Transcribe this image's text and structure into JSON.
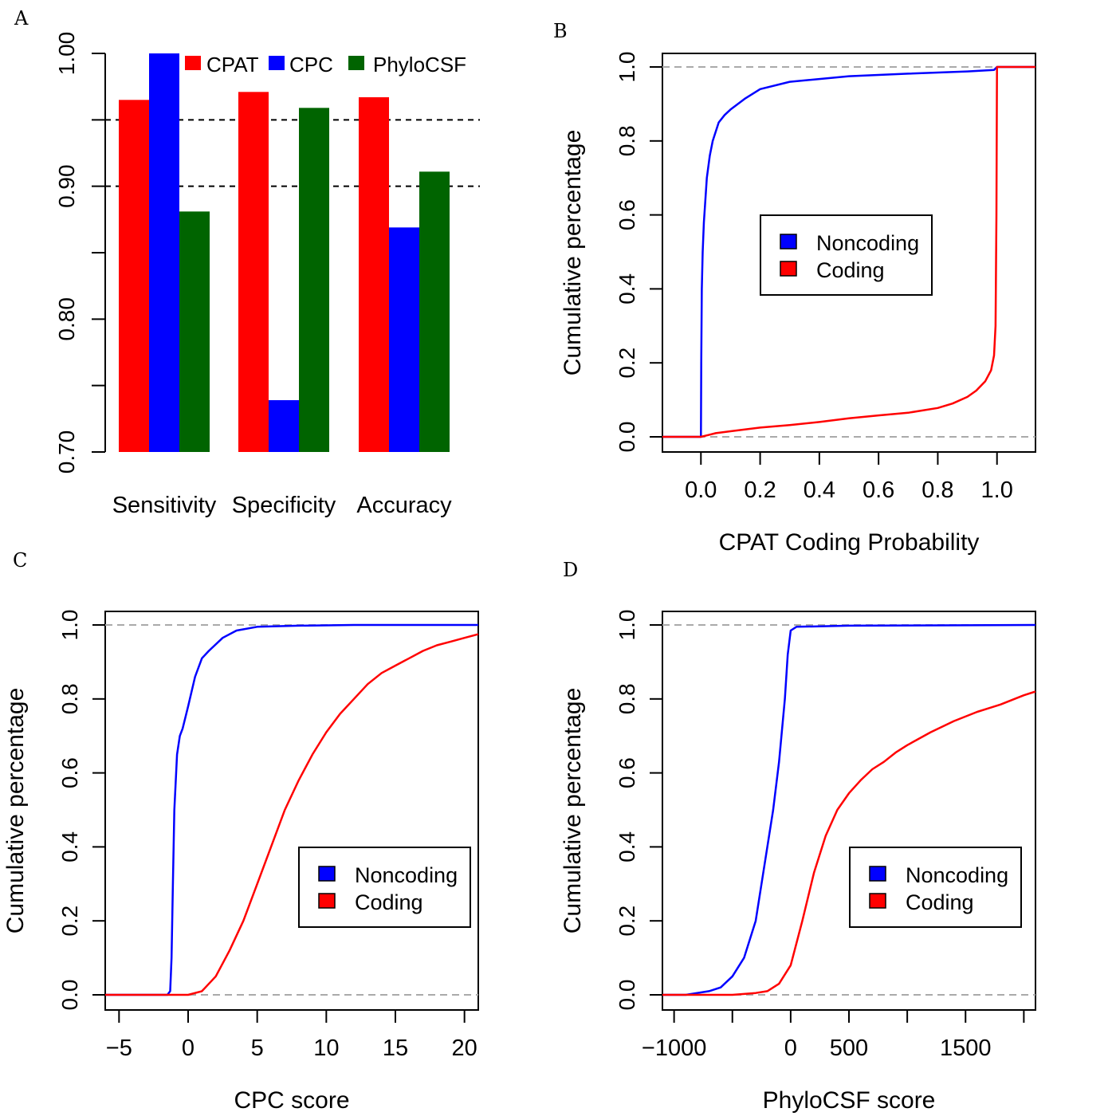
{
  "figure": {
    "panels": [
      "A",
      "B",
      "C",
      "D"
    ]
  },
  "chart_data": [
    {
      "panel": "A",
      "type": "bar",
      "categories": [
        "Sensitivity",
        "Specificity",
        "Accuracy"
      ],
      "series": [
        {
          "name": "CPAT",
          "color": "#ff0000",
          "values": [
            0.965,
            0.971,
            0.967
          ]
        },
        {
          "name": "CPC",
          "color": "#0000ff",
          "values": [
            1.0,
            0.739,
            0.869
          ]
        },
        {
          "name": "PhyloCSF",
          "color": "#006400",
          "values": [
            0.881,
            0.959,
            0.911
          ]
        }
      ],
      "ylim": [
        0.7,
        1.0
      ],
      "yticks": [
        "0.70",
        "0.80",
        "0.90",
        "1.00"
      ],
      "reference_lines": [
        0.95,
        0.9
      ],
      "legend": "top"
    },
    {
      "panel": "B",
      "type": "line",
      "xlabel": "CPAT Coding Probability",
      "ylabel": "Cumulative percentage",
      "xlim": [
        -0.13,
        1.13
      ],
      "ylim": [
        0,
        1
      ],
      "xticks": [
        "0.0",
        "0.2",
        "0.4",
        "0.6",
        "0.8",
        "1.0"
      ],
      "yticks": [
        "0.0",
        "0.2",
        "0.4",
        "0.6",
        "0.8",
        "1.0"
      ],
      "legend": "center",
      "series": [
        {
          "name": "Noncoding",
          "color": "#0000ff",
          "x": [
            -0.13,
            0.0,
            0.001,
            0.003,
            0.006,
            0.01,
            0.02,
            0.03,
            0.04,
            0.06,
            0.08,
            0.1,
            0.15,
            0.2,
            0.3,
            0.5,
            0.7,
            0.9,
            0.99,
            1.0,
            1.13
          ],
          "y": [
            0,
            0,
            0.2,
            0.4,
            0.5,
            0.58,
            0.7,
            0.76,
            0.8,
            0.85,
            0.87,
            0.885,
            0.915,
            0.94,
            0.96,
            0.975,
            0.982,
            0.988,
            0.992,
            1.0,
            1.0
          ]
        },
        {
          "name": "Coding",
          "color": "#ff0000",
          "x": [
            -0.13,
            0.0,
            0.05,
            0.1,
            0.2,
            0.3,
            0.4,
            0.5,
            0.6,
            0.7,
            0.8,
            0.85,
            0.9,
            0.93,
            0.96,
            0.98,
            0.99,
            0.995,
            0.998,
            1.0,
            1.13
          ],
          "y": [
            0,
            0,
            0.01,
            0.015,
            0.025,
            0.032,
            0.04,
            0.05,
            0.058,
            0.065,
            0.078,
            0.09,
            0.108,
            0.125,
            0.15,
            0.18,
            0.22,
            0.3,
            0.6,
            1.0,
            1.0
          ]
        }
      ]
    },
    {
      "panel": "C",
      "type": "line",
      "xlabel": "CPC score",
      "ylabel": "Cumulative percentage",
      "xlim": [
        -6,
        21
      ],
      "ylim": [
        0,
        1
      ],
      "xticks": [
        "−5",
        "0",
        "5",
        "10",
        "15",
        "20"
      ],
      "yticks": [
        "0.0",
        "0.2",
        "0.4",
        "0.6",
        "0.8",
        "1.0"
      ],
      "legend": "right",
      "series": [
        {
          "name": "Noncoding",
          "color": "#0000ff",
          "x": [
            -6,
            -1.5,
            -1.3,
            -1.2,
            -1.1,
            -1.0,
            -0.8,
            -0.6,
            -0.4,
            0.0,
            0.5,
            1.0,
            1.5,
            2.5,
            3.5,
            5,
            8,
            12,
            21
          ],
          "y": [
            0,
            0,
            0.01,
            0.1,
            0.3,
            0.5,
            0.65,
            0.7,
            0.72,
            0.78,
            0.86,
            0.91,
            0.93,
            0.965,
            0.985,
            0.995,
            0.998,
            1.0,
            1.0
          ]
        },
        {
          "name": "Coding",
          "color": "#ff0000",
          "x": [
            -6,
            0,
            1,
            2,
            3,
            4,
            5,
            6,
            7,
            8,
            9,
            10,
            11,
            12,
            13,
            14,
            15,
            16,
            17,
            18,
            19,
            20,
            21
          ],
          "y": [
            0,
            0,
            0.01,
            0.05,
            0.12,
            0.2,
            0.3,
            0.4,
            0.5,
            0.58,
            0.65,
            0.71,
            0.76,
            0.8,
            0.84,
            0.87,
            0.89,
            0.91,
            0.93,
            0.945,
            0.955,
            0.965,
            0.975
          ]
        }
      ]
    },
    {
      "panel": "D",
      "type": "line",
      "xlabel": "PhyloCSF score",
      "ylabel": "Cumulative percentage",
      "xlim": [
        -1100,
        2100
      ],
      "ylim": [
        0,
        1
      ],
      "xticks": [
        "−1000",
        "0",
        "500",
        "1500"
      ],
      "yticks": [
        "0.0",
        "0.2",
        "0.4",
        "0.6",
        "0.8",
        "1.0"
      ],
      "legend": "right",
      "series": [
        {
          "name": "Noncoding",
          "color": "#0000ff",
          "x": [
            -1100,
            -900,
            -700,
            -600,
            -500,
            -400,
            -300,
            -250,
            -200,
            -150,
            -100,
            -50,
            -25,
            0,
            50,
            500,
            2100
          ],
          "y": [
            0,
            0,
            0.01,
            0.02,
            0.05,
            0.1,
            0.2,
            0.3,
            0.4,
            0.5,
            0.63,
            0.8,
            0.92,
            0.985,
            0.995,
            0.998,
            1.0
          ]
        },
        {
          "name": "Coding",
          "color": "#ff0000",
          "x": [
            -1100,
            -500,
            -300,
            -200,
            -100,
            0,
            100,
            200,
            300,
            400,
            500,
            600,
            700,
            800,
            900,
            1000,
            1200,
            1400,
            1600,
            1800,
            2000,
            2100
          ],
          "y": [
            0,
            0,
            0.005,
            0.01,
            0.03,
            0.08,
            0.2,
            0.33,
            0.43,
            0.5,
            0.545,
            0.58,
            0.61,
            0.63,
            0.655,
            0.675,
            0.71,
            0.74,
            0.765,
            0.785,
            0.81,
            0.82
          ]
        }
      ]
    }
  ]
}
